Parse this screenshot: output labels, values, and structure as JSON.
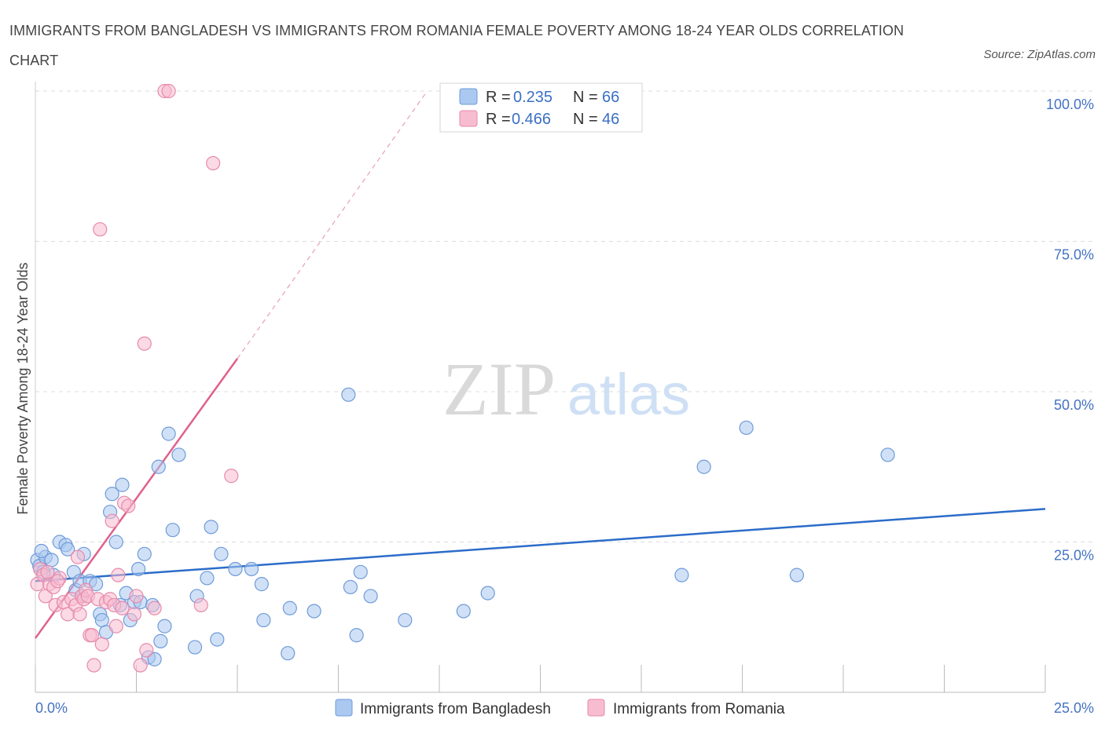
{
  "header": {
    "title": "IMMIGRANTS FROM BANGLADESH VS IMMIGRANTS FROM ROMANIA FEMALE POVERTY AMONG 18-24 YEAR OLDS CORRELATION CHART",
    "source": "Source: ZipAtlas.com"
  },
  "watermark": {
    "zip": "ZIP",
    "atlas": "atlas"
  },
  "legend": {
    "r_label": "R =",
    "n_label": "N =",
    "items": [
      {
        "r": "0.235",
        "n": "66"
      },
      {
        "r": "0.466",
        "n": "46"
      }
    ]
  },
  "colors": {
    "blue_fill": "#aac8f0",
    "blue_stroke": "#6f9bd8",
    "blue_line": "#2b6cc9",
    "pink_fill": "#f8bcd0",
    "pink_stroke": "#e68aaa",
    "pink_line": "#e0608c",
    "axis_text": "#4472c4",
    "grid": "#dddddd"
  },
  "chart_data": {
    "type": "scatter",
    "title": "IMMIGRANTS FROM BANGLADESH VS IMMIGRANTS FROM ROMANIA FEMALE POVERTY AMONG 18-24 YEAR OLDS CORRELATION CHART",
    "xlabel": "",
    "ylabel": "Female Poverty Among 18-24 Year Olds",
    "xlim": [
      0,
      25
    ],
    "ylim": [
      0,
      100
    ],
    "x_tick_labels": [
      "0.0%",
      "25.0%"
    ],
    "y_ticks": [
      25,
      50,
      75,
      100
    ],
    "y_tick_labels": [
      "25.0%",
      "50.0%",
      "75.0%",
      "100.0%"
    ],
    "grid": true,
    "legend_position": "top-center",
    "series": [
      {
        "name": "Immigrants from Bangladesh",
        "color": "#aac8f0",
        "R": 0.235,
        "N": 66,
        "trend": {
          "x": [
            0,
            25
          ],
          "y": [
            18.5,
            30.5
          ]
        },
        "points": [
          [
            0.05,
            22.0
          ],
          [
            0.1,
            21.0
          ],
          [
            0.2,
            20.0
          ],
          [
            0.25,
            22.5
          ],
          [
            0.4,
            22.0
          ],
          [
            0.45,
            19.5
          ],
          [
            0.6,
            25.0
          ],
          [
            0.75,
            24.5
          ],
          [
            0.8,
            23.8
          ],
          [
            0.95,
            20.0
          ],
          [
            1.0,
            17.0
          ],
          [
            1.1,
            18.5
          ],
          [
            1.15,
            16.0
          ],
          [
            1.2,
            23.0
          ],
          [
            1.35,
            18.5
          ],
          [
            1.5,
            18.0
          ],
          [
            1.6,
            13.0
          ],
          [
            1.65,
            12.0
          ],
          [
            1.75,
            10.0
          ],
          [
            1.85,
            30.0
          ],
          [
            1.9,
            33.0
          ],
          [
            2.0,
            25.0
          ],
          [
            2.1,
            14.5
          ],
          [
            2.15,
            34.5
          ],
          [
            2.25,
            16.5
          ],
          [
            2.35,
            12.0
          ],
          [
            2.45,
            15.0
          ],
          [
            2.55,
            20.5
          ],
          [
            2.6,
            15.0
          ],
          [
            2.7,
            23.0
          ],
          [
            2.8,
            5.8
          ],
          [
            2.9,
            14.5
          ],
          [
            2.95,
            5.5
          ],
          [
            3.05,
            37.5
          ],
          [
            3.1,
            8.5
          ],
          [
            3.2,
            11.0
          ],
          [
            3.3,
            43.0
          ],
          [
            3.4,
            27.0
          ],
          [
            3.55,
            39.5
          ],
          [
            3.95,
            7.5
          ],
          [
            4.0,
            16.0
          ],
          [
            4.25,
            19.0
          ],
          [
            4.35,
            27.5
          ],
          [
            4.5,
            8.8
          ],
          [
            4.6,
            23.0
          ],
          [
            4.95,
            20.5
          ],
          [
            5.35,
            20.5
          ],
          [
            5.6,
            18.0
          ],
          [
            5.65,
            12.0
          ],
          [
            6.25,
            6.5
          ],
          [
            6.3,
            14.0
          ],
          [
            6.9,
            13.5
          ],
          [
            7.75,
            49.5
          ],
          [
            7.8,
            17.5
          ],
          [
            7.95,
            9.5
          ],
          [
            8.05,
            20.0
          ],
          [
            8.3,
            16.0
          ],
          [
            9.15,
            12.0
          ],
          [
            10.6,
            13.5
          ],
          [
            11.2,
            16.5
          ],
          [
            16.0,
            19.5
          ],
          [
            16.55,
            37.5
          ],
          [
            17.6,
            44.0
          ],
          [
            18.85,
            19.5
          ],
          [
            21.1,
            39.5
          ],
          [
            0.15,
            23.5
          ]
        ]
      },
      {
        "name": "Immigrants from Romania",
        "color": "#f8bcd0",
        "R": 0.466,
        "N": 46,
        "trend": {
          "x": [
            0,
            5
          ],
          "y": [
            9.0,
            55.5
          ]
        },
        "trend_extension": {
          "x": [
            5,
            9.7
          ],
          "y": [
            55.5,
            100
          ]
        },
        "points": [
          [
            0.05,
            18.0
          ],
          [
            0.12,
            20.5
          ],
          [
            0.2,
            19.5
          ],
          [
            0.25,
            16.0
          ],
          [
            0.35,
            18.0
          ],
          [
            0.45,
            17.5
          ],
          [
            0.5,
            14.5
          ],
          [
            0.6,
            19.0
          ],
          [
            0.7,
            15.0
          ],
          [
            0.8,
            13.0
          ],
          [
            0.9,
            15.5
          ],
          [
            1.0,
            14.5
          ],
          [
            1.05,
            22.5
          ],
          [
            1.1,
            13.0
          ],
          [
            1.15,
            16.0
          ],
          [
            1.2,
            15.5
          ],
          [
            1.25,
            17.0
          ],
          [
            1.3,
            16.0
          ],
          [
            1.35,
            9.5
          ],
          [
            1.45,
            4.5
          ],
          [
            1.55,
            15.5
          ],
          [
            1.6,
            77.0
          ],
          [
            1.65,
            8.0
          ],
          [
            1.75,
            15.0
          ],
          [
            1.85,
            15.5
          ],
          [
            1.9,
            28.5
          ],
          [
            1.95,
            14.5
          ],
          [
            2.0,
            11.0
          ],
          [
            2.05,
            19.5
          ],
          [
            2.15,
            14.0
          ],
          [
            2.2,
            31.5
          ],
          [
            2.45,
            13.0
          ],
          [
            2.5,
            16.0
          ],
          [
            2.6,
            4.5
          ],
          [
            2.7,
            58.0
          ],
          [
            2.75,
            7.0
          ],
          [
            2.95,
            14.0
          ],
          [
            3.2,
            100.0
          ],
          [
            3.3,
            100.0
          ],
          [
            4.1,
            14.5
          ],
          [
            4.4,
            88.0
          ],
          [
            4.85,
            36.0
          ],
          [
            0.3,
            20.0
          ],
          [
            0.55,
            18.5
          ],
          [
            1.4,
            9.5
          ],
          [
            2.3,
            31.0
          ]
        ]
      }
    ]
  }
}
